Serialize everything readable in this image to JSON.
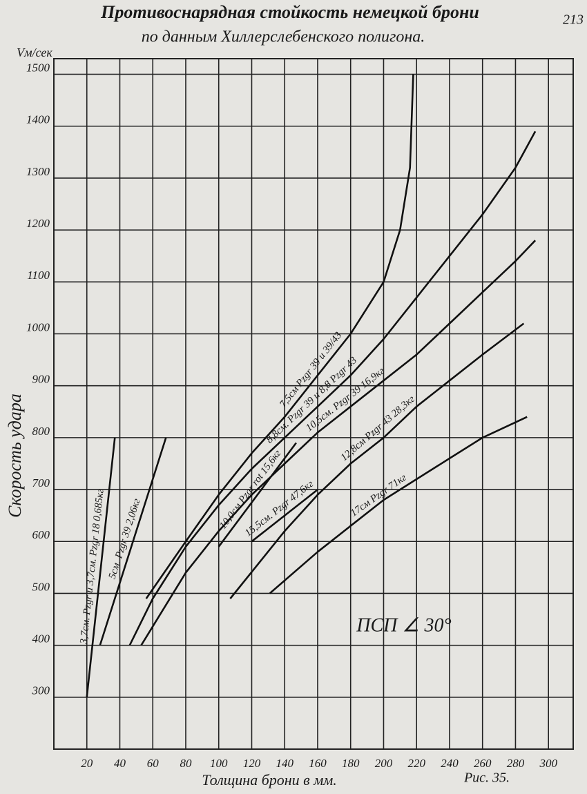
{
  "chart_data": {
    "type": "line",
    "title": "Противоснарядная стойкость немецкой брони",
    "subtitle": "по данным Хиллерслебенского полигона.",
    "page_number": "213",
    "y_unit": "Vм/сек",
    "ylabel": "Скорость удара",
    "xlabel": "Толщина брони в мм.",
    "figure_label": "Рис. 35.",
    "annotation": "ПСП ∠ 30°",
    "xlim": [
      0,
      315
    ],
    "xticks": [
      20,
      40,
      60,
      80,
      100,
      120,
      140,
      160,
      180,
      200,
      220,
      240,
      260,
      280,
      300
    ],
    "ylim": [
      200,
      1530
    ],
    "yticks": [
      300,
      400,
      500,
      600,
      700,
      800,
      900,
      1000,
      1100,
      1200,
      1300,
      1400,
      1500
    ],
    "grid": true,
    "series": [
      {
        "name": "3,7см. Pzgr и 3,7см. Pzgr 18 0,685кг",
        "color": "#111111",
        "x": [
          20,
          37
        ],
        "values": [
          300,
          800
        ]
      },
      {
        "name": "5см. Pzgr 39 2,06кг",
        "color": "#111111",
        "x": [
          28,
          68
        ],
        "values": [
          400,
          800
        ]
      },
      {
        "name": "7,5см Pzgr 39 и 39/43",
        "color": "#111111",
        "x": [
          56,
          80,
          100,
          120,
          140,
          160,
          180,
          200,
          210,
          216,
          218
        ],
        "values": [
          490,
          600,
          690,
          770,
          840,
          920,
          1000,
          1100,
          1200,
          1320,
          1500
        ]
      },
      {
        "name": "8,8см. Pzgr 39 и 8,8 Pzgr 43",
        "color": "#111111",
        "x": [
          46,
          60,
          80,
          100,
          120,
          140,
          160,
          180,
          200,
          220,
          240,
          260,
          280,
          292
        ],
        "values": [
          400,
          490,
          590,
          670,
          740,
          800,
          860,
          920,
          990,
          1070,
          1150,
          1230,
          1320,
          1390
        ]
      },
      {
        "name": "10,0см Pzgr rot 15,6кг",
        "color": "#111111",
        "x": [
          100,
          147
        ],
        "values": [
          590,
          790
        ]
      },
      {
        "name": "10,5см. Pzgr 39 16,9кг",
        "color": "#111111",
        "x": [
          53,
          80,
          100,
          120,
          140,
          160,
          180,
          200,
          220,
          240,
          260,
          280,
          292
        ],
        "values": [
          400,
          540,
          620,
          690,
          750,
          810,
          860,
          910,
          960,
          1020,
          1080,
          1140,
          1180
        ]
      },
      {
        "name": "12,8см Pzgr 43 28,3кг",
        "color": "#111111",
        "x": [
          107,
          140,
          160,
          180,
          200,
          220,
          240,
          260,
          285
        ],
        "values": [
          490,
          620,
          690,
          750,
          800,
          860,
          910,
          960,
          1020
        ]
      },
      {
        "name": "15,5см. Pzgr 47,6кг",
        "color": "#111111",
        "x": [
          120,
          160
        ],
        "values": [
          600,
          700
        ]
      },
      {
        "name": "17см Pzgr 71кг",
        "color": "#111111",
        "x": [
          131,
          160,
          180,
          200,
          220,
          240,
          260,
          287
        ],
        "values": [
          500,
          580,
          630,
          680,
          720,
          760,
          800,
          840
        ]
      }
    ]
  }
}
